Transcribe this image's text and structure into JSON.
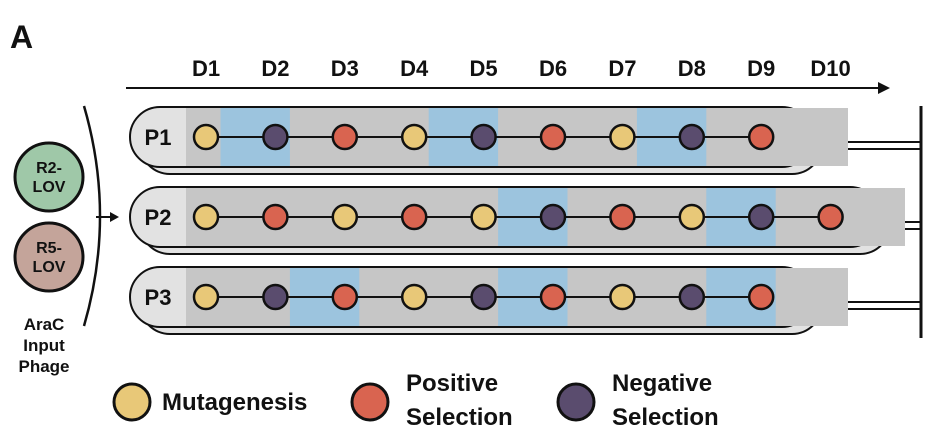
{
  "panel_label": "A",
  "days": [
    "D1",
    "D2",
    "D3",
    "D4",
    "D5",
    "D6",
    "D7",
    "D8",
    "D9",
    "D10"
  ],
  "inputs": {
    "phages": [
      {
        "line1": "R2-",
        "line2": "LOV",
        "color": "#9fc8a8"
      },
      {
        "line1": "R5-",
        "line2": "LOV",
        "color": "#c4a49a"
      }
    ],
    "caption": [
      "AraC",
      "Input",
      "Phage"
    ]
  },
  "colors": {
    "mutagenesis": "#e8c878",
    "positive": "#d96450",
    "negative": "#5a4c6e",
    "selection_band": "#9cc4de",
    "track_gray": "#c6c6c6",
    "tube_fill": "#e2e2e2",
    "outline": "#111111"
  },
  "passages": [
    {
      "label": "P1",
      "stages": [
        "mutagenesis",
        "negative",
        "positive",
        "mutagenesis",
        "negative",
        "positive",
        "mutagenesis",
        "negative",
        "positive"
      ],
      "blue_days": [
        2,
        5,
        8
      ]
    },
    {
      "label": "P2",
      "stages": [
        "mutagenesis",
        "positive",
        "mutagenesis",
        "positive",
        "mutagenesis",
        "negative",
        "positive",
        "mutagenesis",
        "negative",
        "positive"
      ],
      "blue_days": [
        6,
        9
      ]
    },
    {
      "label": "P3",
      "stages": [
        "mutagenesis",
        "negative",
        "positive",
        "mutagenesis",
        "negative",
        "positive",
        "mutagenesis",
        "negative",
        "positive"
      ],
      "blue_days": [
        3,
        6,
        9
      ]
    }
  ],
  "legend": [
    {
      "key": "mutagenesis",
      "line1": "Mutagenesis",
      "line2": ""
    },
    {
      "key": "positive",
      "line1": "Positive",
      "line2": "Selection"
    },
    {
      "key": "negative",
      "line1": "Negative",
      "line2": "Selection"
    }
  ]
}
